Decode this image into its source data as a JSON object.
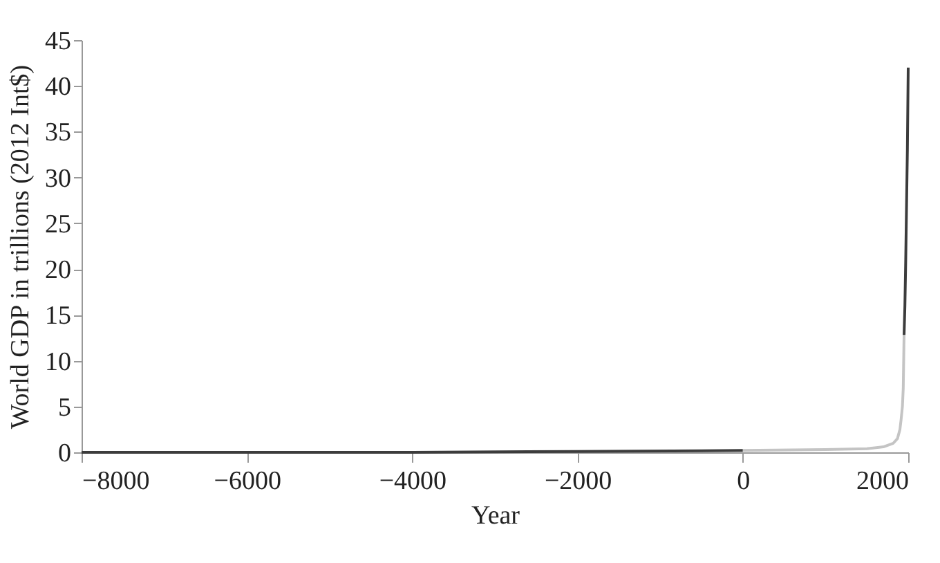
{
  "chart_data": {
    "type": "line",
    "xlabel": "Year",
    "ylabel": "World GDP in trillions (2012 Int$)",
    "xlim": [
      -8000,
      2000
    ],
    "xticks": [
      -8000,
      -6000,
      -4000,
      -2000,
      0,
      2000
    ],
    "ylim": [
      0,
      45
    ],
    "yticks": [
      0,
      5,
      10,
      15,
      20,
      25,
      30,
      35,
      40,
      45
    ],
    "grid": false,
    "legend": false,
    "series": [
      {
        "color": "#3c3c3c",
        "x": [
          -8000,
          -4000,
          -2000,
          0,
          null,
          1950,
          1960,
          1970,
          1980,
          1990,
          2000
        ],
        "values": [
          0,
          0,
          0.1,
          0.2,
          null,
          12.8,
          16,
          21,
          27,
          33,
          42
        ]
      },
      {
        "color": "#c4c4c4",
        "x": [
          0,
          1000,
          1500,
          1700,
          1820,
          1870,
          1900,
          1913,
          1930,
          1940,
          1950
        ],
        "values": [
          0.2,
          0.3,
          0.4,
          0.6,
          1,
          1.5,
          2.5,
          3.5,
          5,
          7,
          12.8
        ]
      }
    ]
  }
}
